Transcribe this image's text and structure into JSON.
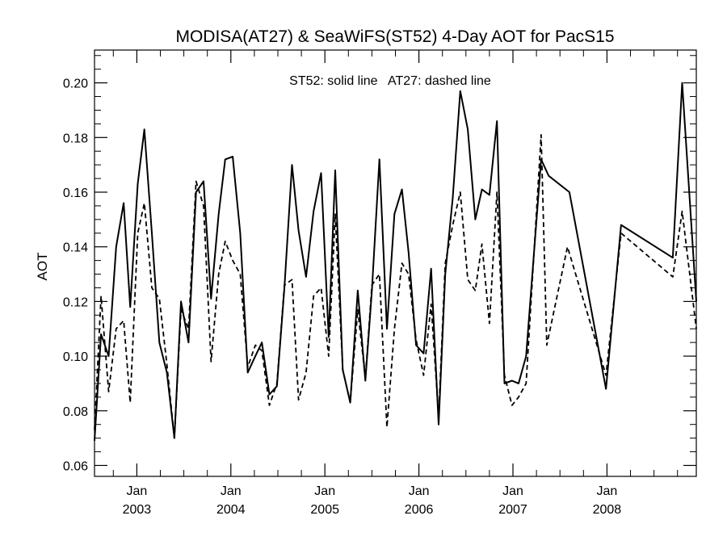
{
  "chart_data": {
    "type": "line",
    "title": "MODISA(AT27) & SeaWiFS(ST52) 4-Day AOT for PacS15",
    "annotation": "ST52: solid line   AT27: dashed line",
    "ylabel": "AOT",
    "xlabel": "",
    "ylim": [
      0.056,
      0.212
    ],
    "xlim": [
      2002.55,
      2008.95
    ],
    "y_ticks": [
      "0.06",
      "0.08",
      "0.10",
      "0.12",
      "0.14",
      "0.16",
      "0.18",
      "0.20"
    ],
    "x_ticks": [
      {
        "month": "Jan",
        "year": "2003"
      },
      {
        "month": "Jan",
        "year": "2004"
      },
      {
        "month": "Jan",
        "year": "2005"
      },
      {
        "month": "Jan",
        "year": "2006"
      },
      {
        "month": "Jan",
        "year": "2007"
      },
      {
        "month": "Jan",
        "year": "2008"
      }
    ],
    "grid": false,
    "series": [
      {
        "name": "ST52",
        "style": "solid",
        "points": [
          [
            2002.55,
            0.069
          ],
          [
            2002.62,
            0.108
          ],
          [
            2002.7,
            0.1
          ],
          [
            2002.78,
            0.14
          ],
          [
            2002.86,
            0.156
          ],
          [
            2002.93,
            0.118
          ],
          [
            2003.01,
            0.163
          ],
          [
            2003.08,
            0.183
          ],
          [
            2003.16,
            0.145
          ],
          [
            2003.24,
            0.105
          ],
          [
            2003.32,
            0.094
          ],
          [
            2003.4,
            0.07
          ],
          [
            2003.47,
            0.12
          ],
          [
            2003.55,
            0.105
          ],
          [
            2003.63,
            0.16
          ],
          [
            2003.71,
            0.164
          ],
          [
            2003.79,
            0.121
          ],
          [
            2003.87,
            0.152
          ],
          [
            2003.94,
            0.172
          ],
          [
            2004.02,
            0.173
          ],
          [
            2004.1,
            0.145
          ],
          [
            2004.18,
            0.094
          ],
          [
            2004.26,
            0.1
          ],
          [
            2004.33,
            0.105
          ],
          [
            2004.41,
            0.086
          ],
          [
            2004.49,
            0.089
          ],
          [
            2004.57,
            0.125
          ],
          [
            2004.65,
            0.17
          ],
          [
            2004.72,
            0.146
          ],
          [
            2004.8,
            0.129
          ],
          [
            2004.88,
            0.153
          ],
          [
            2004.96,
            0.167
          ],
          [
            2005.04,
            0.107
          ],
          [
            2005.11,
            0.168
          ],
          [
            2005.19,
            0.095
          ],
          [
            2005.27,
            0.083
          ],
          [
            2005.35,
            0.124
          ],
          [
            2005.43,
            0.091
          ],
          [
            2005.5,
            0.124
          ],
          [
            2005.58,
            0.172
          ],
          [
            2005.66,
            0.11
          ],
          [
            2005.74,
            0.152
          ],
          [
            2005.82,
            0.161
          ],
          [
            2005.89,
            0.138
          ],
          [
            2005.97,
            0.104
          ],
          [
            2006.05,
            0.101
          ],
          [
            2006.13,
            0.132
          ],
          [
            2006.21,
            0.075
          ],
          [
            2006.28,
            0.13
          ],
          [
            2006.36,
            0.158
          ],
          [
            2006.44,
            0.197
          ],
          [
            2006.52,
            0.183
          ],
          [
            2006.6,
            0.15
          ],
          [
            2006.67,
            0.161
          ],
          [
            2006.75,
            0.159
          ],
          [
            2006.83,
            0.186
          ],
          [
            2006.91,
            0.09
          ],
          [
            2006.99,
            0.091
          ],
          [
            2007.06,
            0.09
          ],
          [
            2007.14,
            0.1
          ],
          [
            2007.3,
            0.172
          ],
          [
            2007.38,
            0.166
          ],
          [
            2007.6,
            0.16
          ],
          [
            2007.99,
            0.088
          ],
          [
            2008.15,
            0.148
          ],
          [
            2008.7,
            0.136
          ],
          [
            2008.8,
            0.2
          ],
          [
            2008.95,
            0.12
          ]
        ]
      },
      {
        "name": "AT27",
        "style": "dashed",
        "points": [
          [
            2002.55,
            0.073
          ],
          [
            2002.62,
            0.122
          ],
          [
            2002.7,
            0.087
          ],
          [
            2002.78,
            0.11
          ],
          [
            2002.86,
            0.113
          ],
          [
            2002.93,
            0.083
          ],
          [
            2003.01,
            0.145
          ],
          [
            2003.08,
            0.156
          ],
          [
            2003.16,
            0.125
          ],
          [
            2003.24,
            0.121
          ],
          [
            2003.32,
            0.097
          ],
          [
            2003.4,
            0.07
          ],
          [
            2003.47,
            0.117
          ],
          [
            2003.55,
            0.11
          ],
          [
            2003.63,
            0.164
          ],
          [
            2003.71,
            0.155
          ],
          [
            2003.79,
            0.098
          ],
          [
            2003.87,
            0.13
          ],
          [
            2003.94,
            0.142
          ],
          [
            2004.02,
            0.135
          ],
          [
            2004.1,
            0.13
          ],
          [
            2004.18,
            0.096
          ],
          [
            2004.26,
            0.104
          ],
          [
            2004.33,
            0.102
          ],
          [
            2004.41,
            0.082
          ],
          [
            2004.49,
            0.09
          ],
          [
            2004.57,
            0.126
          ],
          [
            2004.65,
            0.128
          ],
          [
            2004.72,
            0.084
          ],
          [
            2004.8,
            0.094
          ],
          [
            2004.88,
            0.122
          ],
          [
            2004.96,
            0.125
          ],
          [
            2005.04,
            0.1
          ],
          [
            2005.11,
            0.152
          ],
          [
            2005.19,
            0.095
          ],
          [
            2005.27,
            0.083
          ],
          [
            2005.35,
            0.117
          ],
          [
            2005.43,
            0.092
          ],
          [
            2005.5,
            0.126
          ],
          [
            2005.58,
            0.13
          ],
          [
            2005.66,
            0.074
          ],
          [
            2005.74,
            0.11
          ],
          [
            2005.82,
            0.134
          ],
          [
            2005.89,
            0.13
          ],
          [
            2005.97,
            0.106
          ],
          [
            2006.05,
            0.093
          ],
          [
            2006.13,
            0.119
          ],
          [
            2006.21,
            0.078
          ],
          [
            2006.28,
            0.134
          ],
          [
            2006.36,
            0.148
          ],
          [
            2006.44,
            0.16
          ],
          [
            2006.52,
            0.128
          ],
          [
            2006.6,
            0.124
          ],
          [
            2006.67,
            0.141
          ],
          [
            2006.75,
            0.112
          ],
          [
            2006.83,
            0.16
          ],
          [
            2006.91,
            0.093
          ],
          [
            2006.99,
            0.082
          ],
          [
            2007.06,
            0.085
          ],
          [
            2007.14,
            0.09
          ],
          [
            2007.3,
            0.181
          ],
          [
            2007.36,
            0.104
          ],
          [
            2007.58,
            0.14
          ],
          [
            2007.99,
            0.093
          ],
          [
            2008.15,
            0.145
          ],
          [
            2008.7,
            0.129
          ],
          [
            2008.8,
            0.153
          ],
          [
            2008.95,
            0.11
          ]
        ]
      }
    ]
  }
}
